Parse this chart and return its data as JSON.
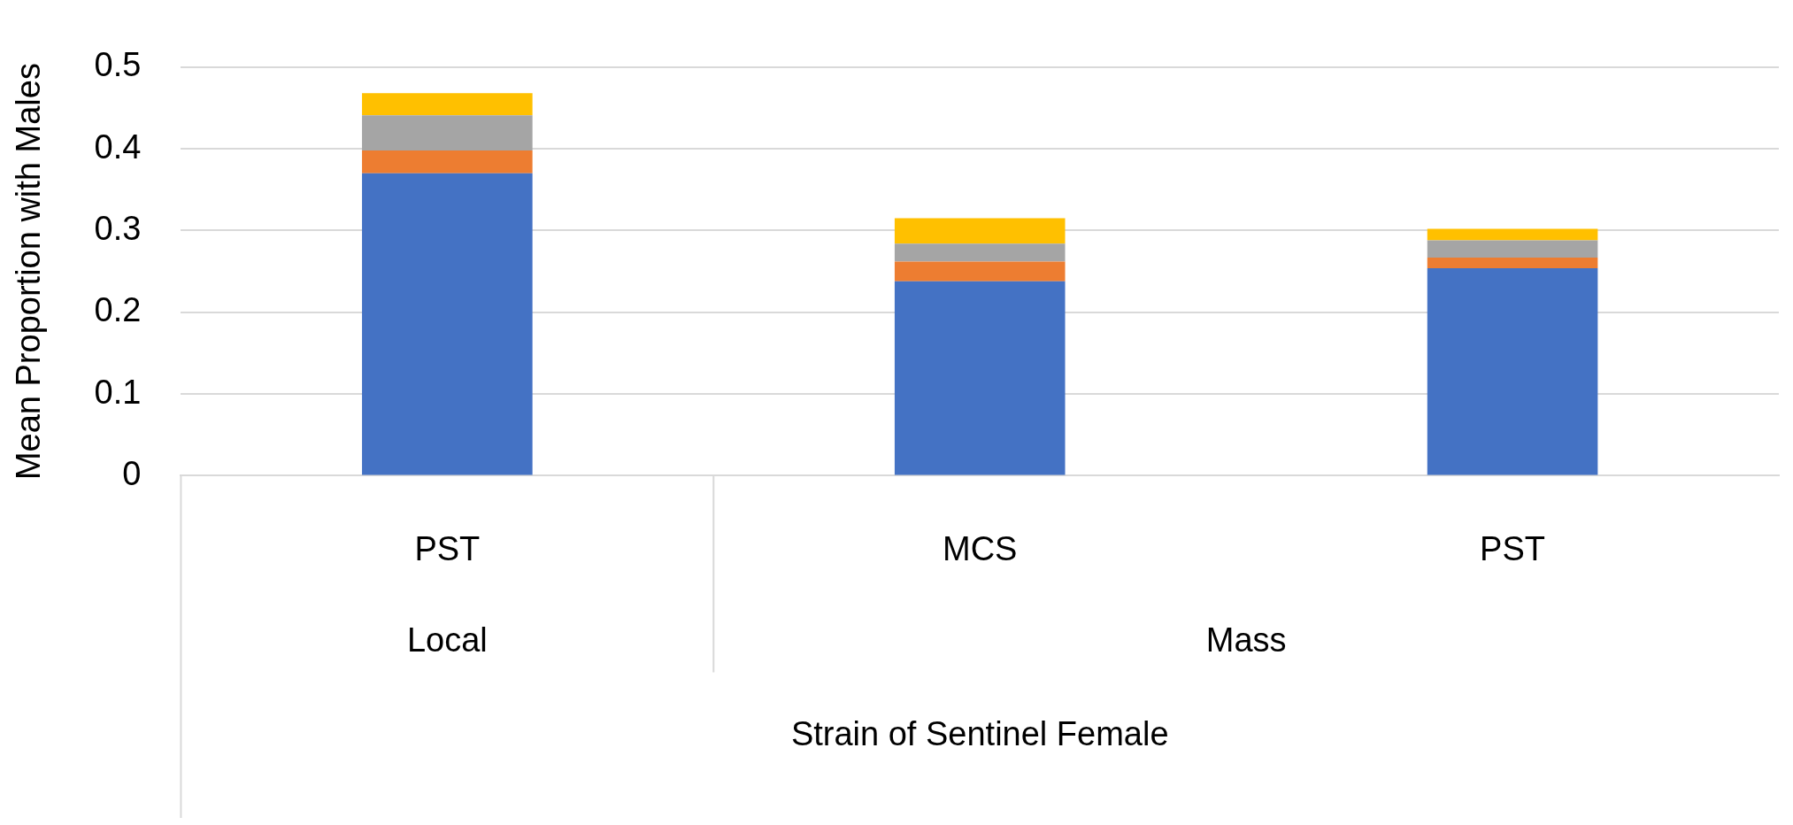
{
  "chart_data": {
    "type": "bar",
    "stacked": true,
    "ylabel": "Mean Proportion with Males",
    "categories": [
      "PST",
      "MCS",
      "PST"
    ],
    "annotations": [
      "Local",
      "Mass",
      "Strain of Sentinel Female"
    ],
    "series": [
      {
        "color": "#4472c4",
        "values": [
          0.37,
          0.238,
          0.254
        ]
      },
      {
        "color": "#ed7d31",
        "values": [
          0.028,
          0.024,
          0.013
        ]
      },
      {
        "color": "#a5a5a5",
        "values": [
          0.043,
          0.022,
          0.021
        ]
      },
      {
        "color": "#ffc000",
        "values": [
          0.027,
          0.031,
          0.014
        ]
      }
    ],
    "ylim": [
      0,
      0.5
    ],
    "yticks": [
      0,
      0.1,
      0.2,
      0.3,
      0.4,
      0.5
    ],
    "grid": "y",
    "legend": false
  }
}
